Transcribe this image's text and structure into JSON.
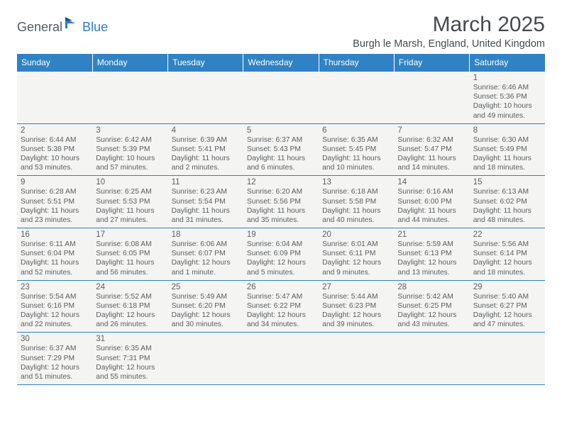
{
  "logo": {
    "part1": "General",
    "part2": "Blue"
  },
  "title": "March 2025",
  "location": "Burgh le Marsh, England, United Kingdom",
  "colors": {
    "header_bg": "#3082c4",
    "header_text": "#ffffff",
    "cell_bg": "#f4f4f3",
    "border": "#3082c4",
    "text": "#5b5e60",
    "title_text": "#454a4e"
  },
  "columns": [
    "Sunday",
    "Monday",
    "Tuesday",
    "Wednesday",
    "Thursday",
    "Friday",
    "Saturday"
  ],
  "weeks": [
    [
      null,
      null,
      null,
      null,
      null,
      null,
      {
        "n": "1",
        "sr": "Sunrise: 6:46 AM",
        "ss": "Sunset: 5:36 PM",
        "d1": "Daylight: 10 hours",
        "d2": "and 49 minutes."
      }
    ],
    [
      {
        "n": "2",
        "sr": "Sunrise: 6:44 AM",
        "ss": "Sunset: 5:38 PM",
        "d1": "Daylight: 10 hours",
        "d2": "and 53 minutes."
      },
      {
        "n": "3",
        "sr": "Sunrise: 6:42 AM",
        "ss": "Sunset: 5:39 PM",
        "d1": "Daylight: 10 hours",
        "d2": "and 57 minutes."
      },
      {
        "n": "4",
        "sr": "Sunrise: 6:39 AM",
        "ss": "Sunset: 5:41 PM",
        "d1": "Daylight: 11 hours",
        "d2": "and 2 minutes."
      },
      {
        "n": "5",
        "sr": "Sunrise: 6:37 AM",
        "ss": "Sunset: 5:43 PM",
        "d1": "Daylight: 11 hours",
        "d2": "and 6 minutes."
      },
      {
        "n": "6",
        "sr": "Sunrise: 6:35 AM",
        "ss": "Sunset: 5:45 PM",
        "d1": "Daylight: 11 hours",
        "d2": "and 10 minutes."
      },
      {
        "n": "7",
        "sr": "Sunrise: 6:32 AM",
        "ss": "Sunset: 5:47 PM",
        "d1": "Daylight: 11 hours",
        "d2": "and 14 minutes."
      },
      {
        "n": "8",
        "sr": "Sunrise: 6:30 AM",
        "ss": "Sunset: 5:49 PM",
        "d1": "Daylight: 11 hours",
        "d2": "and 18 minutes."
      }
    ],
    [
      {
        "n": "9",
        "sr": "Sunrise: 6:28 AM",
        "ss": "Sunset: 5:51 PM",
        "d1": "Daylight: 11 hours",
        "d2": "and 23 minutes."
      },
      {
        "n": "10",
        "sr": "Sunrise: 6:25 AM",
        "ss": "Sunset: 5:53 PM",
        "d1": "Daylight: 11 hours",
        "d2": "and 27 minutes."
      },
      {
        "n": "11",
        "sr": "Sunrise: 6:23 AM",
        "ss": "Sunset: 5:54 PM",
        "d1": "Daylight: 11 hours",
        "d2": "and 31 minutes."
      },
      {
        "n": "12",
        "sr": "Sunrise: 6:20 AM",
        "ss": "Sunset: 5:56 PM",
        "d1": "Daylight: 11 hours",
        "d2": "and 35 minutes."
      },
      {
        "n": "13",
        "sr": "Sunrise: 6:18 AM",
        "ss": "Sunset: 5:58 PM",
        "d1": "Daylight: 11 hours",
        "d2": "and 40 minutes."
      },
      {
        "n": "14",
        "sr": "Sunrise: 6:16 AM",
        "ss": "Sunset: 6:00 PM",
        "d1": "Daylight: 11 hours",
        "d2": "and 44 minutes."
      },
      {
        "n": "15",
        "sr": "Sunrise: 6:13 AM",
        "ss": "Sunset: 6:02 PM",
        "d1": "Daylight: 11 hours",
        "d2": "and 48 minutes."
      }
    ],
    [
      {
        "n": "16",
        "sr": "Sunrise: 6:11 AM",
        "ss": "Sunset: 6:04 PM",
        "d1": "Daylight: 11 hours",
        "d2": "and 52 minutes."
      },
      {
        "n": "17",
        "sr": "Sunrise: 6:08 AM",
        "ss": "Sunset: 6:05 PM",
        "d1": "Daylight: 11 hours",
        "d2": "and 56 minutes."
      },
      {
        "n": "18",
        "sr": "Sunrise: 6:06 AM",
        "ss": "Sunset: 6:07 PM",
        "d1": "Daylight: 12 hours",
        "d2": "and 1 minute."
      },
      {
        "n": "19",
        "sr": "Sunrise: 6:04 AM",
        "ss": "Sunset: 6:09 PM",
        "d1": "Daylight: 12 hours",
        "d2": "and 5 minutes."
      },
      {
        "n": "20",
        "sr": "Sunrise: 6:01 AM",
        "ss": "Sunset: 6:11 PM",
        "d1": "Daylight: 12 hours",
        "d2": "and 9 minutes."
      },
      {
        "n": "21",
        "sr": "Sunrise: 5:59 AM",
        "ss": "Sunset: 6:13 PM",
        "d1": "Daylight: 12 hours",
        "d2": "and 13 minutes."
      },
      {
        "n": "22",
        "sr": "Sunrise: 5:56 AM",
        "ss": "Sunset: 6:14 PM",
        "d1": "Daylight: 12 hours",
        "d2": "and 18 minutes."
      }
    ],
    [
      {
        "n": "23",
        "sr": "Sunrise: 5:54 AM",
        "ss": "Sunset: 6:16 PM",
        "d1": "Daylight: 12 hours",
        "d2": "and 22 minutes."
      },
      {
        "n": "24",
        "sr": "Sunrise: 5:52 AM",
        "ss": "Sunset: 6:18 PM",
        "d1": "Daylight: 12 hours",
        "d2": "and 26 minutes."
      },
      {
        "n": "25",
        "sr": "Sunrise: 5:49 AM",
        "ss": "Sunset: 6:20 PM",
        "d1": "Daylight: 12 hours",
        "d2": "and 30 minutes."
      },
      {
        "n": "26",
        "sr": "Sunrise: 5:47 AM",
        "ss": "Sunset: 6:22 PM",
        "d1": "Daylight: 12 hours",
        "d2": "and 34 minutes."
      },
      {
        "n": "27",
        "sr": "Sunrise: 5:44 AM",
        "ss": "Sunset: 6:23 PM",
        "d1": "Daylight: 12 hours",
        "d2": "and 39 minutes."
      },
      {
        "n": "28",
        "sr": "Sunrise: 5:42 AM",
        "ss": "Sunset: 6:25 PM",
        "d1": "Daylight: 12 hours",
        "d2": "and 43 minutes."
      },
      {
        "n": "29",
        "sr": "Sunrise: 5:40 AM",
        "ss": "Sunset: 6:27 PM",
        "d1": "Daylight: 12 hours",
        "d2": "and 47 minutes."
      }
    ],
    [
      {
        "n": "30",
        "sr": "Sunrise: 6:37 AM",
        "ss": "Sunset: 7:29 PM",
        "d1": "Daylight: 12 hours",
        "d2": "and 51 minutes."
      },
      {
        "n": "31",
        "sr": "Sunrise: 6:35 AM",
        "ss": "Sunset: 7:31 PM",
        "d1": "Daylight: 12 hours",
        "d2": "and 55 minutes."
      },
      null,
      null,
      null,
      null,
      null
    ]
  ]
}
